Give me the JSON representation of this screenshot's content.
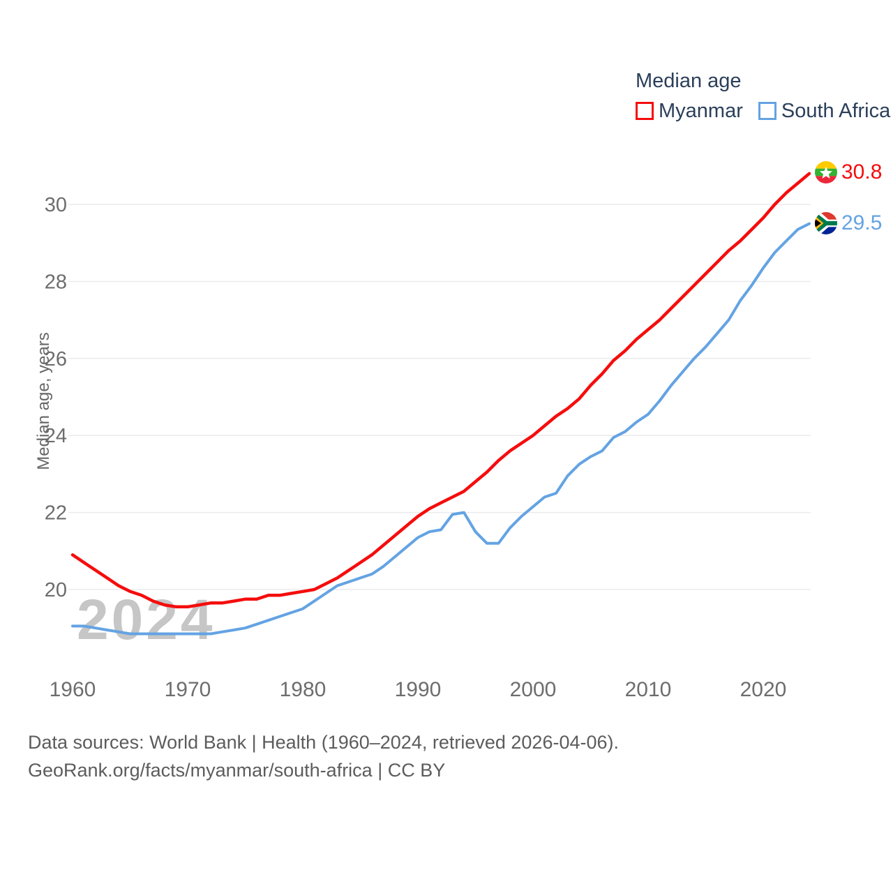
{
  "legend": {
    "title": "Median age",
    "items": [
      {
        "label": "Myanmar",
        "color": "#f50d0d"
      },
      {
        "label": "South Africa",
        "color": "#64a3e3"
      }
    ]
  },
  "y_axis_title": "Median age, years",
  "watermark": "2024",
  "end_labels": [
    {
      "country": "Myanmar",
      "value": "30.8",
      "flag": "myanmar-flag"
    },
    {
      "country": "South Africa",
      "value": "29.5",
      "flag": "south-africa-flag"
    }
  ],
  "footer": {
    "line1": "Data sources: World Bank | Health (1960–2024, retrieved 2026-04-06).",
    "line2": "GeoRank.org/facts/myanmar/south-africa | CC BY"
  },
  "chart_data": {
    "type": "line",
    "title": "Median age",
    "xlabel": "",
    "ylabel": "Median age, years",
    "grid": "horizontal",
    "legend_position": "top-right",
    "ylim": [
      18.6,
      31.2
    ],
    "yticks": [
      20,
      22,
      24,
      26,
      28,
      30
    ],
    "xticks": [
      1960,
      1970,
      1980,
      1990,
      2000,
      2010,
      2020
    ],
    "x": [
      1960,
      1961,
      1962,
      1963,
      1964,
      1965,
      1966,
      1967,
      1968,
      1969,
      1970,
      1971,
      1972,
      1973,
      1974,
      1975,
      1976,
      1977,
      1978,
      1979,
      1980,
      1981,
      1982,
      1983,
      1984,
      1985,
      1986,
      1987,
      1988,
      1989,
      1990,
      1991,
      1992,
      1993,
      1994,
      1995,
      1996,
      1997,
      1998,
      1999,
      2000,
      2001,
      2002,
      2003,
      2004,
      2005,
      2006,
      2007,
      2008,
      2009,
      2010,
      2011,
      2012,
      2013,
      2014,
      2015,
      2016,
      2017,
      2018,
      2019,
      2020,
      2021,
      2022,
      2023,
      2024
    ],
    "series": [
      {
        "name": "Myanmar",
        "color": "#f50d0d",
        "end_value": 30.8,
        "values": [
          20.9,
          20.7,
          20.5,
          20.3,
          20.1,
          19.95,
          19.85,
          19.7,
          19.6,
          19.55,
          19.55,
          19.6,
          19.65,
          19.65,
          19.7,
          19.75,
          19.75,
          19.85,
          19.85,
          19.9,
          19.95,
          20.0,
          20.15,
          20.3,
          20.5,
          20.7,
          20.9,
          21.15,
          21.4,
          21.65,
          21.9,
          22.1,
          22.25,
          22.4,
          22.55,
          22.8,
          23.05,
          23.35,
          23.6,
          23.8,
          24.0,
          24.25,
          24.5,
          24.7,
          24.95,
          25.3,
          25.6,
          25.95,
          26.2,
          26.5,
          26.75,
          27.0,
          27.3,
          27.6,
          27.9,
          28.2,
          28.5,
          28.8,
          29.05,
          29.35,
          29.65,
          30.0,
          30.3,
          30.55,
          30.8
        ]
      },
      {
        "name": "South Africa",
        "color": "#64a3e3",
        "end_value": 29.5,
        "values": [
          19.05,
          19.05,
          19.0,
          18.95,
          18.9,
          18.85,
          18.85,
          18.85,
          18.85,
          18.85,
          18.85,
          18.85,
          18.85,
          18.9,
          18.95,
          19.0,
          19.1,
          19.2,
          19.3,
          19.4,
          19.5,
          19.7,
          19.9,
          20.1,
          20.2,
          20.3,
          20.4,
          20.6,
          20.85,
          21.1,
          21.35,
          21.5,
          21.55,
          21.95,
          22.0,
          21.5,
          21.2,
          21.2,
          21.6,
          21.9,
          22.15,
          22.4,
          22.5,
          22.95,
          23.25,
          23.45,
          23.6,
          23.95,
          24.1,
          24.35,
          24.55,
          24.9,
          25.3,
          25.65,
          26.0,
          26.3,
          26.65,
          27.0,
          27.5,
          27.9,
          28.35,
          28.75,
          29.05,
          29.35,
          29.5
        ]
      }
    ]
  }
}
